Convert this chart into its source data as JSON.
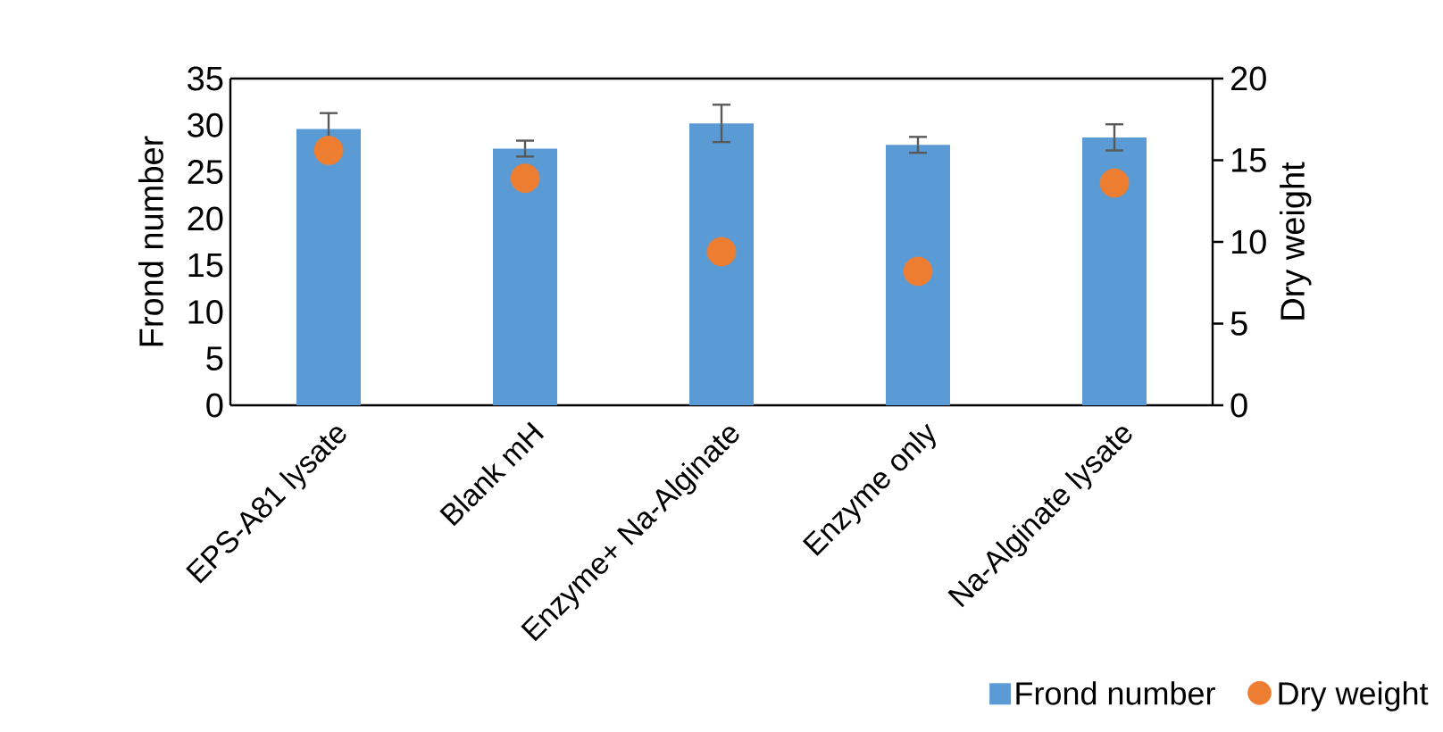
{
  "chart_data": {
    "type": "bar",
    "ylabel": "Frond number",
    "y2label": "Dry weight",
    "categories": [
      "EPS-A81 lysate",
      "Blank mH",
      "Enzyme+ Na-Alginate",
      "Enzyme only",
      "Na-Alginate lysate"
    ],
    "series": [
      {
        "name": "Frond number",
        "color": "#5b9bd5",
        "values": [
          29.6,
          27.5,
          30.2,
          27.9,
          28.7
        ],
        "errors": [
          1.7,
          0.85,
          2.0,
          0.85,
          1.4
        ]
      },
      {
        "name": "Dry weight",
        "type": "scatter",
        "axis": "y2",
        "color": "#ed7d31",
        "values": [
          15.6,
          13.9,
          9.4,
          8.2,
          13.6
        ]
      }
    ],
    "ylim": [
      0,
      35
    ],
    "yticks": [
      0,
      5,
      10,
      15,
      20,
      25,
      30,
      35
    ],
    "y2lim": [
      0,
      20
    ],
    "y2ticks": [
      0,
      5,
      10,
      15,
      20
    ],
    "marker": "circle",
    "grid": false,
    "legend": "bottom right"
  }
}
